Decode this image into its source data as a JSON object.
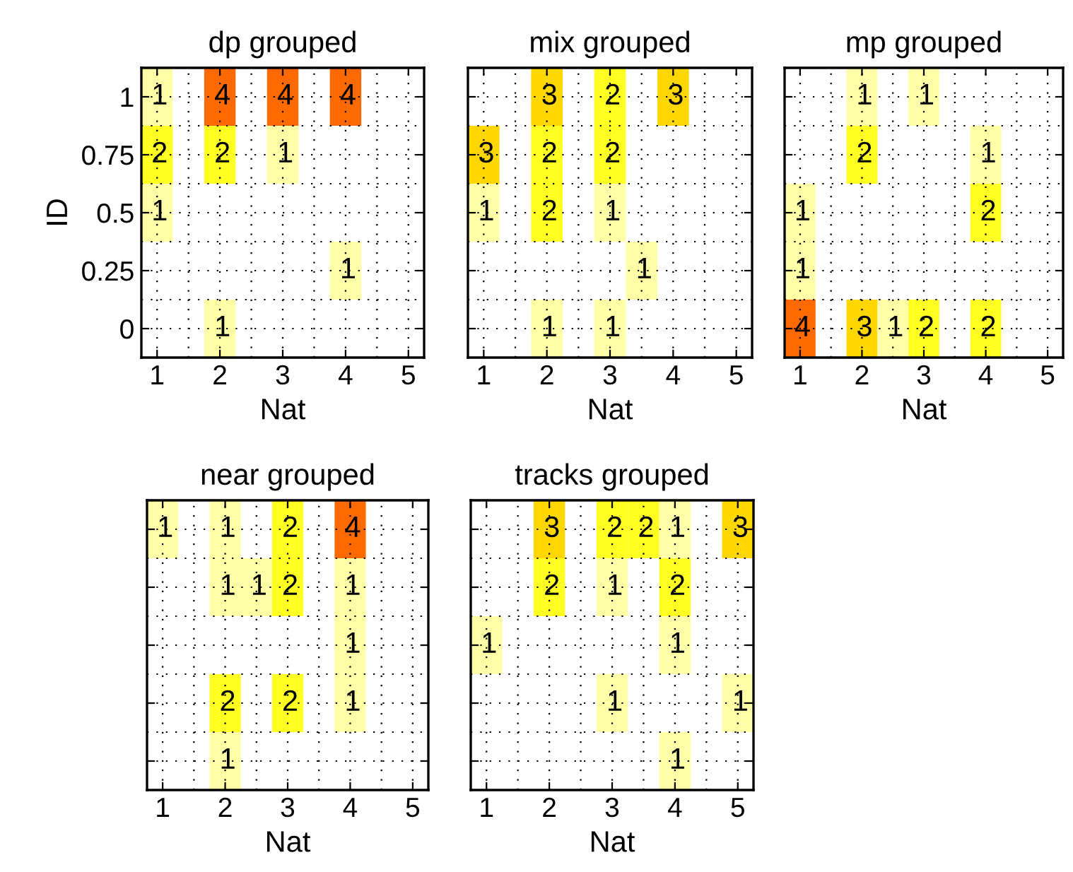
{
  "chart_data": [
    {
      "type": "heatmap",
      "title": "dp grouped",
      "xlabel": "Nat",
      "ylabel": "ID",
      "grid": true,
      "data_labels": true,
      "categories": [
        "1",
        null,
        "2",
        null,
        "3",
        null,
        "4",
        null,
        "5"
      ],
      "y_categories": [
        "1",
        "0.75",
        "0.5",
        "0.25",
        "0"
      ],
      "cells": [
        [
          1,
          null,
          4,
          null,
          4,
          null,
          4,
          null,
          null
        ],
        [
          2,
          null,
          2,
          null,
          1,
          null,
          null,
          null,
          null
        ],
        [
          1,
          null,
          null,
          null,
          null,
          null,
          null,
          null,
          null
        ],
        [
          null,
          null,
          null,
          null,
          null,
          null,
          1,
          null,
          null
        ],
        [
          null,
          null,
          1,
          null,
          null,
          null,
          null,
          null,
          null
        ]
      ]
    },
    {
      "type": "heatmap",
      "title": "mix grouped",
      "xlabel": "Nat",
      "grid": true,
      "data_labels": true,
      "categories": [
        "1",
        null,
        "2",
        null,
        "3",
        null,
        "4",
        null,
        "5"
      ],
      "y_categories": [
        null,
        null,
        null,
        null,
        null
      ],
      "cells": [
        [
          null,
          null,
          3,
          null,
          2,
          null,
          3,
          null,
          null
        ],
        [
          3,
          null,
          2,
          null,
          2,
          null,
          null,
          null,
          null
        ],
        [
          1,
          null,
          2,
          null,
          1,
          null,
          null,
          null,
          null
        ],
        [
          null,
          null,
          null,
          null,
          null,
          1,
          null,
          null,
          null
        ],
        [
          null,
          null,
          1,
          null,
          1,
          null,
          null,
          null,
          null
        ]
      ]
    },
    {
      "type": "heatmap",
      "title": "mp grouped",
      "xlabel": "Nat",
      "grid": true,
      "data_labels": true,
      "categories": [
        "1",
        null,
        "2",
        null,
        "3",
        null,
        "4",
        null,
        "5"
      ],
      "y_categories": [
        null,
        null,
        null,
        null,
        null
      ],
      "cells": [
        [
          null,
          null,
          1,
          null,
          1,
          null,
          null,
          null,
          null
        ],
        [
          null,
          null,
          2,
          null,
          null,
          null,
          1,
          null,
          null
        ],
        [
          1,
          null,
          null,
          null,
          null,
          null,
          2,
          null,
          null
        ],
        [
          1,
          null,
          null,
          null,
          null,
          null,
          null,
          null,
          null
        ],
        [
          4,
          null,
          3,
          1,
          2,
          null,
          2,
          null,
          null
        ]
      ]
    },
    {
      "type": "heatmap",
      "title": "near grouped",
      "xlabel": "Nat",
      "grid": true,
      "data_labels": true,
      "categories": [
        "1",
        null,
        "2",
        null,
        "3",
        null,
        "4",
        null,
        "5"
      ],
      "y_categories": [
        null,
        null,
        null,
        null,
        null
      ],
      "cells": [
        [
          1,
          null,
          1,
          null,
          2,
          null,
          4,
          null,
          null
        ],
        [
          null,
          null,
          1,
          1,
          2,
          null,
          1,
          null,
          null
        ],
        [
          null,
          null,
          null,
          null,
          null,
          null,
          1,
          null,
          null
        ],
        [
          null,
          null,
          2,
          null,
          2,
          null,
          1,
          null,
          null
        ],
        [
          null,
          null,
          1,
          null,
          null,
          null,
          null,
          null,
          null
        ]
      ]
    },
    {
      "type": "heatmap",
      "title": "tracks grouped",
      "xlabel": "Nat",
      "grid": true,
      "data_labels": true,
      "categories": [
        "1",
        null,
        "2",
        null,
        "3",
        null,
        "4",
        null,
        "5"
      ],
      "y_categories": [
        null,
        null,
        null,
        null,
        null
      ],
      "cells": [
        [
          null,
          null,
          3,
          null,
          2,
          2,
          1,
          null,
          3
        ],
        [
          null,
          null,
          2,
          null,
          1,
          null,
          2,
          null,
          null
        ],
        [
          1,
          null,
          null,
          null,
          null,
          null,
          1,
          null,
          null
        ],
        [
          null,
          null,
          null,
          null,
          1,
          null,
          null,
          null,
          1
        ],
        [
          null,
          null,
          null,
          null,
          null,
          null,
          1,
          null,
          null
        ]
      ]
    }
  ]
}
